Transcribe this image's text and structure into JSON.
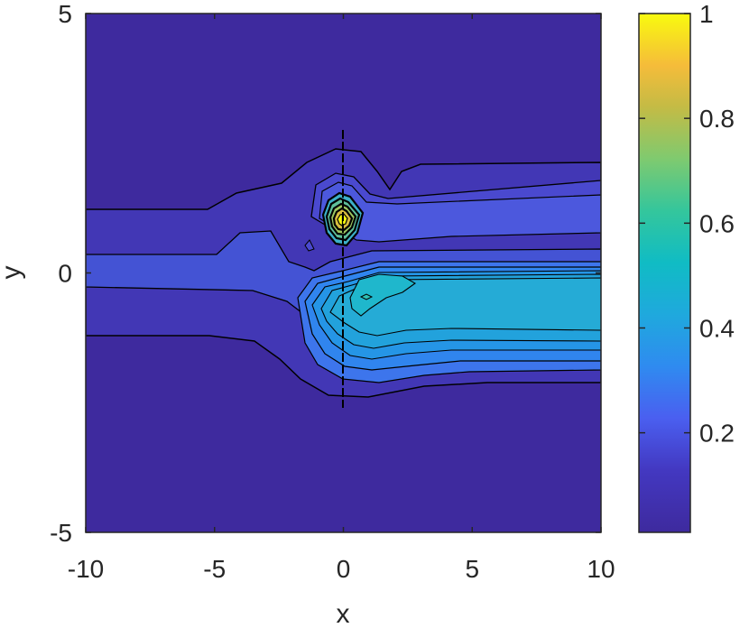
{
  "chart_data": {
    "type": "contour",
    "title": "",
    "xlabel": "x",
    "ylabel": "y",
    "xlim": [
      -10,
      10
    ],
    "ylim": [
      -5,
      5
    ],
    "xticks": [
      "-10",
      "-5",
      "0",
      "5",
      "10"
    ],
    "yticks": [
      "-5",
      "0",
      "5"
    ],
    "colorbar": {
      "colormap": "parula",
      "range": [
        0.01,
        1
      ],
      "ticks": [
        "0.2",
        "0.4",
        "0.6",
        "0.8",
        "1"
      ]
    },
    "colors": {
      "background_level": "#3e2a9e",
      "outer_band": "#4237b5",
      "mid_band": "#4453d4",
      "core_band": "#2ba3d8",
      "peak": "#f9fb0e"
    },
    "features": {
      "barrier_segment": {
        "x": 0,
        "y_range": [
          -2.6,
          2.7
        ]
      },
      "source_peak": {
        "x": 0,
        "y": 1,
        "value": 1.0
      },
      "wake_max": {
        "x": 0.9,
        "y": -0.5,
        "value": 0.45
      },
      "plume_level_count": 12
    }
  }
}
